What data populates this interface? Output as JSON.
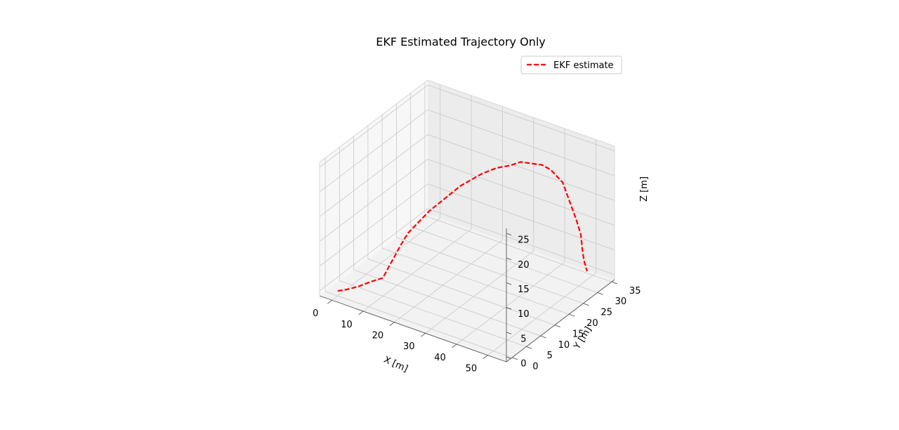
{
  "chart_data": {
    "type": "line",
    "projection": "3d",
    "title": "EKF Estimated Trajectory Only",
    "xlabel": "X [m]",
    "ylabel": "Y [m]",
    "zlabel": "Z [m]",
    "xlim": [
      -4,
      56
    ],
    "ylim": [
      -2,
      36
    ],
    "zlim": [
      -1,
      26
    ],
    "xticks": [
      "0",
      "10",
      "20",
      "30",
      "40",
      "50"
    ],
    "yticks": [
      "0",
      "5",
      "10",
      "15",
      "20",
      "25",
      "30",
      "35"
    ],
    "zticks": [
      "0",
      "5",
      "10",
      "15",
      "20",
      "25"
    ],
    "grid": true,
    "legend_position": "upper-right",
    "series": [
      {
        "name": "EKF estimate",
        "color": "#ff0000",
        "style": "dashed",
        "points": [
          [
            0,
            0,
            0
          ],
          [
            2,
            1,
            0.3
          ],
          [
            4,
            3,
            0.5
          ],
          [
            6,
            5,
            1.0
          ],
          [
            9,
            6,
            2.0
          ],
          [
            10,
            7,
            4.0
          ],
          [
            11,
            8,
            6.0
          ],
          [
            12,
            9,
            8.0
          ],
          [
            13,
            10.5,
            10.0
          ],
          [
            15,
            12,
            12.0
          ],
          [
            17,
            13.5,
            14.0
          ],
          [
            19,
            15,
            15.5
          ],
          [
            21,
            16.5,
            17.0
          ],
          [
            23,
            18,
            18.5
          ],
          [
            25,
            19.5,
            19.5
          ],
          [
            27,
            21,
            20.5
          ],
          [
            30,
            23,
            21.5
          ],
          [
            33,
            24.5,
            22.0
          ],
          [
            35,
            26,
            22.5
          ],
          [
            37,
            27.5,
            22.0
          ],
          [
            39,
            29,
            21.5
          ],
          [
            41,
            30,
            20.5
          ],
          [
            42,
            31,
            19.0
          ],
          [
            43,
            32,
            17.5
          ],
          [
            44,
            32.5,
            15.0
          ],
          [
            45,
            33,
            12.5
          ],
          [
            46,
            33.5,
            10.0
          ],
          [
            47,
            34,
            7.0
          ],
          [
            47.5,
            34,
            4.0
          ],
          [
            48,
            34,
            2.0
          ],
          [
            48.5,
            34,
            1.0
          ],
          [
            49,
            34,
            0.0
          ]
        ]
      }
    ]
  }
}
